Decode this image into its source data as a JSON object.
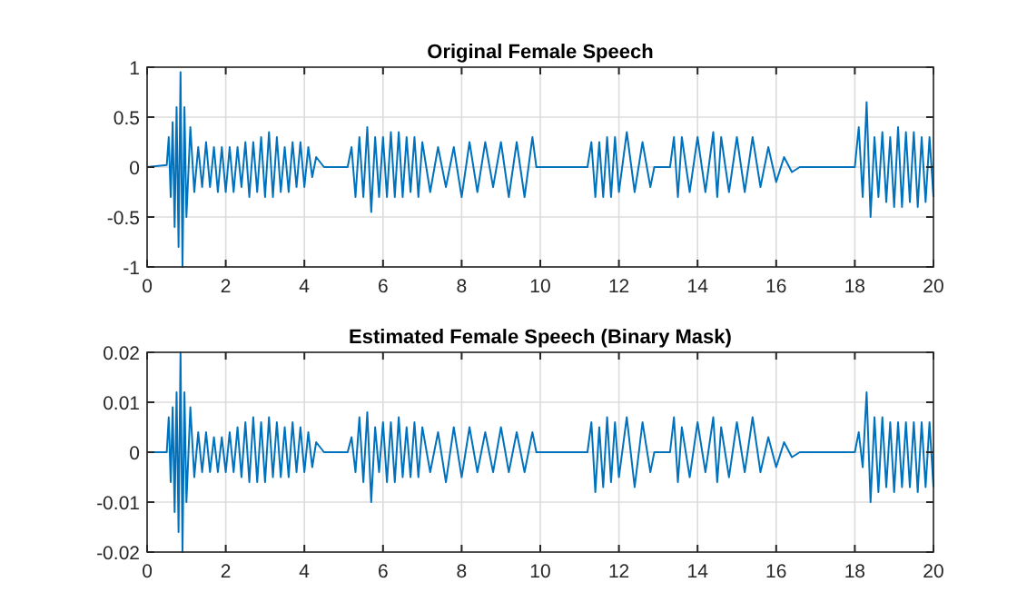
{
  "chart_data": [
    {
      "type": "line",
      "title": "Original Female Speech",
      "color": "#0072bd",
      "grid": true,
      "xlim": [
        0,
        20
      ],
      "ylim": [
        -1,
        1
      ],
      "xticks": [
        0,
        2,
        4,
        6,
        8,
        10,
        12,
        14,
        16,
        18,
        20
      ],
      "yticks": [
        -1,
        -0.5,
        0,
        0.5,
        1
      ],
      "x": [
        0,
        0.5,
        0.55,
        0.6,
        0.65,
        0.7,
        0.75,
        0.8,
        0.85,
        0.9,
        0.95,
        1.0,
        1.1,
        1.2,
        1.3,
        1.4,
        1.5,
        1.6,
        1.7,
        1.8,
        1.9,
        2.0,
        2.1,
        2.2,
        2.3,
        2.4,
        2.5,
        2.6,
        2.7,
        2.8,
        2.9,
        3.0,
        3.1,
        3.2,
        3.3,
        3.4,
        3.5,
        3.6,
        3.7,
        3.8,
        3.9,
        4.0,
        4.1,
        4.2,
        4.3,
        4.5,
        5.1,
        5.2,
        5.3,
        5.4,
        5.5,
        5.6,
        5.7,
        5.8,
        5.9,
        6.0,
        6.1,
        6.2,
        6.3,
        6.4,
        6.5,
        6.6,
        6.7,
        6.8,
        6.9,
        7.0,
        7.2,
        7.4,
        7.6,
        7.8,
        8.0,
        8.2,
        8.4,
        8.6,
        8.8,
        9.0,
        9.2,
        9.4,
        9.6,
        9.8,
        9.9,
        11.2,
        11.3,
        11.4,
        11.5,
        11.6,
        11.7,
        11.8,
        11.9,
        12.0,
        12.2,
        12.4,
        12.6,
        12.8,
        12.9,
        13.3,
        13.4,
        13.5,
        13.6,
        13.8,
        14.0,
        14.2,
        14.4,
        14.5,
        14.6,
        14.8,
        15.0,
        15.2,
        15.4,
        15.6,
        15.8,
        16.0,
        16.2,
        16.4,
        16.6,
        18.0,
        18.1,
        18.2,
        18.3,
        18.4,
        18.5,
        18.6,
        18.7,
        18.8,
        18.9,
        19.0,
        19.1,
        19.2,
        19.3,
        19.4,
        19.5,
        19.6,
        19.7,
        19.8,
        19.9,
        20
      ],
      "values": [
        0,
        0.02,
        0.3,
        -0.3,
        0.45,
        -0.6,
        0.6,
        -0.8,
        0.95,
        -1.0,
        0.6,
        -0.5,
        0.4,
        -0.25,
        0.2,
        -0.2,
        0.25,
        -0.2,
        0.2,
        -0.25,
        0.2,
        -0.25,
        0.2,
        -0.25,
        0.2,
        -0.2,
        0.25,
        -0.3,
        0.25,
        -0.25,
        0.3,
        -0.3,
        0.35,
        -0.3,
        0.3,
        -0.25,
        0.2,
        -0.25,
        0.25,
        -0.2,
        0.25,
        -0.2,
        0.2,
        -0.1,
        0.1,
        0,
        0,
        0.2,
        -0.3,
        0.3,
        -0.3,
        0.4,
        -0.45,
        0.3,
        -0.3,
        0.3,
        -0.3,
        0.35,
        -0.3,
        0.35,
        -0.3,
        0.3,
        -0.25,
        0.3,
        -0.3,
        0.25,
        -0.25,
        0.2,
        -0.2,
        0.2,
        -0.3,
        0.25,
        -0.25,
        0.25,
        -0.2,
        0.25,
        -0.3,
        0.25,
        -0.3,
        0.3,
        0,
        0,
        0.25,
        -0.3,
        0.25,
        -0.3,
        0.3,
        -0.3,
        0.3,
        -0.25,
        0.35,
        -0.25,
        0.25,
        -0.2,
        0,
        0,
        0.3,
        -0.3,
        0.3,
        -0.25,
        0.3,
        -0.25,
        0.35,
        -0.3,
        0.3,
        -0.25,
        0.3,
        -0.25,
        0.3,
        -0.2,
        0.2,
        -0.15,
        0.1,
        -0.05,
        0,
        0,
        0.4,
        -0.3,
        0.65,
        -0.5,
        0.3,
        -0.3,
        0.35,
        -0.35,
        0.3,
        -0.4,
        0.4,
        -0.4,
        0.35,
        -0.35,
        0.35,
        -0.4,
        0.3,
        -0.35,
        0.3,
        -0.3
      ]
    },
    {
      "type": "line",
      "title": "Estimated Female Speech (Binary Mask)",
      "color": "#0072bd",
      "grid": true,
      "xlim": [
        0,
        20
      ],
      "ylim": [
        -0.02,
        0.02
      ],
      "xticks": [
        0,
        2,
        4,
        6,
        8,
        10,
        12,
        14,
        16,
        18,
        20
      ],
      "yticks": [
        -0.02,
        -0.01,
        0,
        0.01,
        0.02
      ],
      "x": [
        0,
        0.5,
        0.55,
        0.6,
        0.65,
        0.7,
        0.75,
        0.8,
        0.85,
        0.9,
        0.95,
        1.0,
        1.1,
        1.2,
        1.3,
        1.4,
        1.5,
        1.6,
        1.7,
        1.8,
        1.9,
        2.0,
        2.1,
        2.2,
        2.3,
        2.4,
        2.5,
        2.6,
        2.7,
        2.8,
        2.9,
        3.0,
        3.1,
        3.2,
        3.3,
        3.4,
        3.5,
        3.6,
        3.7,
        3.8,
        3.9,
        4.0,
        4.1,
        4.2,
        4.3,
        4.5,
        5.1,
        5.2,
        5.3,
        5.4,
        5.5,
        5.6,
        5.7,
        5.8,
        5.9,
        6.0,
        6.1,
        6.2,
        6.3,
        6.4,
        6.5,
        6.6,
        6.7,
        6.8,
        6.9,
        7.0,
        7.2,
        7.4,
        7.6,
        7.8,
        8.0,
        8.2,
        8.4,
        8.6,
        8.8,
        9.0,
        9.2,
        9.4,
        9.6,
        9.8,
        9.9,
        11.2,
        11.3,
        11.4,
        11.5,
        11.6,
        11.7,
        11.8,
        11.9,
        12.0,
        12.2,
        12.4,
        12.6,
        12.8,
        12.9,
        13.3,
        13.4,
        13.5,
        13.6,
        13.8,
        14.0,
        14.2,
        14.4,
        14.5,
        14.6,
        14.8,
        15.0,
        15.2,
        15.4,
        15.6,
        15.8,
        16.0,
        16.2,
        16.4,
        16.6,
        18.0,
        18.1,
        18.2,
        18.3,
        18.4,
        18.5,
        18.6,
        18.7,
        18.8,
        18.9,
        19.0,
        19.1,
        19.2,
        19.3,
        19.4,
        19.5,
        19.6,
        19.7,
        19.8,
        19.9,
        20
      ],
      "values": [
        0,
        0,
        0.007,
        -0.006,
        0.009,
        -0.012,
        0.012,
        -0.016,
        0.02,
        -0.02,
        0.012,
        -0.01,
        0.009,
        -0.005,
        0.004,
        -0.004,
        0.004,
        -0.004,
        0.003,
        -0.004,
        0.003,
        -0.004,
        0.004,
        -0.004,
        0.005,
        -0.005,
        0.006,
        -0.006,
        0.007,
        -0.006,
        0.006,
        -0.006,
        0.007,
        -0.005,
        0.006,
        -0.005,
        0.005,
        -0.005,
        0.006,
        -0.004,
        0.005,
        -0.004,
        0.004,
        -0.003,
        0.002,
        0,
        0,
        0.003,
        -0.004,
        0.007,
        -0.006,
        0.008,
        -0.01,
        0.005,
        -0.004,
        0.006,
        -0.006,
        0.006,
        -0.006,
        0.007,
        -0.005,
        0.005,
        -0.005,
        0.006,
        -0.005,
        0.005,
        -0.004,
        0.004,
        -0.006,
        0.005,
        -0.005,
        0.005,
        -0.004,
        0.004,
        -0.004,
        0.005,
        -0.004,
        0.004,
        -0.004,
        0.004,
        0,
        0,
        0.006,
        -0.008,
        0.005,
        -0.007,
        0.007,
        -0.006,
        0.006,
        -0.005,
        0.007,
        -0.007,
        0.006,
        -0.004,
        0,
        0,
        0.007,
        -0.006,
        0.005,
        -0.005,
        0.006,
        -0.004,
        0.007,
        -0.006,
        0.005,
        -0.005,
        0.006,
        -0.004,
        0.007,
        -0.004,
        0.003,
        -0.003,
        0.002,
        -0.001,
        0,
        0,
        0.004,
        -0.003,
        0.012,
        -0.01,
        0.007,
        -0.008,
        0.007,
        -0.007,
        0.006,
        -0.008,
        0.006,
        -0.007,
        0.006,
        -0.007,
        0.006,
        -0.008,
        0.006,
        -0.007,
        0.006,
        -0.007
      ]
    }
  ]
}
